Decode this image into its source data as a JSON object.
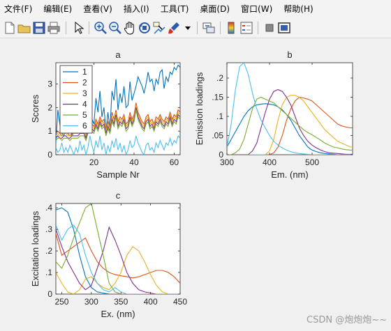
{
  "menus": [
    "文件(F)",
    "编辑(E)",
    "查看(V)",
    "插入(I)",
    "工具(T)",
    "桌面(D)",
    "窗口(W)",
    "帮助(H)"
  ],
  "toolbar_icons": [
    "new-file-icon",
    "open-folder-icon",
    "save-icon",
    "print-icon",
    "pointer-icon",
    "zoom-in-icon",
    "zoom-out-icon",
    "pan-hand-icon",
    "rotate-3d-icon",
    "data-cursor-icon",
    "brush-icon",
    "link-icon",
    "colorbar-icon",
    "legend-icon",
    "hide-plot-tools-icon",
    "show-plot-tools-icon"
  ],
  "watermark": "CSDN @炮炮炮~~",
  "colors": [
    "#0072BD",
    "#D95319",
    "#EDB120",
    "#7E2F8E",
    "#77AC30",
    "#4DBEEE"
  ],
  "chart_data": [
    {
      "type": "line",
      "title": "a",
      "xlabel": "Sample Nr",
      "ylabel": "Scores",
      "xlim": [
        1,
        63
      ],
      "ylim": [
        0,
        3.9
      ],
      "xticks": [
        20,
        40,
        60
      ],
      "yticks": [
        0,
        1,
        2,
        3
      ],
      "legend": [
        "1",
        "2",
        "3",
        "4",
        "5",
        "6"
      ],
      "legend_position": "top-left",
      "series": [
        {
          "name": "1",
          "values": [
            0.5,
            1.9,
            1.3,
            0.9,
            0.8,
            1.1,
            0.9,
            1.2,
            0.8,
            1.1,
            1.3,
            1.0,
            1.7,
            1.2,
            1.3,
            0.7,
            1.6,
            2.1,
            1.5,
            1.3,
            2.4,
            1.8,
            2.7,
            1.6,
            2.0,
            1.0,
            1.8,
            1.1,
            2.7,
            2.3,
            3.2,
            1.9,
            2.6,
            2.2,
            2.9,
            2.0,
            2.1,
            3.1,
            2.3,
            2.6,
            2.9,
            3.3,
            3.1,
            2.9,
            2.6,
            3.0,
            3.5,
            3.1,
            3.2,
            2.7,
            3.2,
            3.0,
            3.5,
            3.6,
            2.8,
            3.3,
            3.1,
            3.5,
            3.4,
            3.7,
            3.6,
            3.8,
            3.7
          ]
        },
        {
          "name": "2",
          "values": [
            0.9,
            1.0,
            0.9,
            0.8,
            0.9,
            1.0,
            0.9,
            0.8,
            0.9,
            1.0,
            1.0,
            0.9,
            1.1,
            1.0,
            1.1,
            0.9,
            1.2,
            1.4,
            1.3,
            1.2,
            1.5,
            1.3,
            1.6,
            1.4,
            1.5,
            1.1,
            1.4,
            1.2,
            1.8,
            1.5,
            1.9,
            1.4,
            1.6,
            1.5,
            1.7,
            1.3,
            1.4,
            1.8,
            1.5,
            1.7,
            2.2,
            1.8,
            1.6,
            1.4,
            1.3,
            1.6,
            1.7,
            1.4,
            1.5,
            1.3,
            1.6,
            1.5,
            1.7,
            1.5,
            1.4,
            1.6,
            1.5,
            1.8,
            1.5,
            1.7,
            1.6,
            1.9,
            1.8
          ]
        },
        {
          "name": "3",
          "values": [
            0.8,
            0.9,
            0.8,
            0.8,
            0.9,
            0.9,
            0.8,
            0.8,
            0.8,
            0.9,
            0.9,
            0.9,
            1.0,
            0.9,
            1.0,
            0.8,
            1.1,
            1.3,
            1.2,
            1.1,
            1.4,
            1.2,
            1.5,
            1.3,
            1.4,
            1.0,
            1.3,
            1.1,
            1.6,
            1.4,
            1.8,
            1.3,
            1.5,
            1.4,
            1.6,
            1.2,
            1.3,
            1.7,
            1.4,
            1.6,
            2.1,
            1.7,
            1.5,
            1.3,
            1.2,
            1.5,
            1.6,
            1.3,
            1.4,
            1.2,
            1.5,
            1.4,
            1.6,
            1.4,
            1.3,
            1.5,
            1.4,
            1.7,
            1.4,
            1.6,
            1.5,
            1.8,
            1.7
          ]
        },
        {
          "name": "4",
          "values": [
            0.7,
            0.8,
            0.7,
            0.7,
            0.8,
            0.8,
            0.7,
            0.7,
            0.8,
            0.8,
            0.8,
            0.8,
            0.9,
            0.9,
            0.9,
            0.7,
            1.0,
            1.2,
            1.1,
            1.0,
            1.3,
            1.1,
            1.4,
            1.2,
            1.3,
            0.9,
            1.2,
            1.0,
            1.5,
            1.3,
            1.7,
            1.2,
            1.4,
            1.3,
            1.5,
            1.1,
            1.2,
            1.6,
            1.3,
            1.5,
            2.0,
            1.6,
            1.4,
            1.2,
            1.1,
            1.4,
            1.5,
            1.2,
            1.3,
            1.1,
            1.4,
            1.3,
            1.5,
            1.3,
            1.2,
            1.4,
            1.3,
            1.6,
            1.3,
            1.5,
            1.4,
            1.7,
            1.6
          ]
        },
        {
          "name": "5",
          "values": [
            0.6,
            0.7,
            0.7,
            0.6,
            0.7,
            0.7,
            0.7,
            0.6,
            0.7,
            0.7,
            0.7,
            0.7,
            0.8,
            0.8,
            0.8,
            0.6,
            0.9,
            1.1,
            1.0,
            0.9,
            1.2,
            1.0,
            1.3,
            1.1,
            1.2,
            0.8,
            1.1,
            0.9,
            1.4,
            1.2,
            1.6,
            1.1,
            1.3,
            1.2,
            1.4,
            1.0,
            1.1,
            1.5,
            1.2,
            1.4,
            1.9,
            1.5,
            1.3,
            1.1,
            1.0,
            1.3,
            1.4,
            1.1,
            1.2,
            1.0,
            1.3,
            1.2,
            1.4,
            1.2,
            1.1,
            1.3,
            1.2,
            1.5,
            1.2,
            1.4,
            1.3,
            1.6,
            1.5
          ]
        },
        {
          "name": "6",
          "values": [
            0.3,
            0.1,
            0.2,
            0.5,
            0.1,
            0.3,
            0.1,
            0.4,
            0.2,
            0.0,
            0.3,
            0.1,
            0.6,
            0.2,
            0.4,
            0.0,
            0.3,
            0.8,
            0.4,
            0.1,
            0.6,
            0.3,
            0.8,
            0.2,
            0.5,
            0.0,
            0.4,
            0.1,
            0.6,
            0.3,
            0.7,
            0.2,
            0.5,
            0.1,
            0.4,
            0.0,
            0.2,
            0.6,
            0.3,
            0.4,
            0.8,
            0.5,
            0.3,
            0.1,
            0.0,
            0.4,
            0.5,
            0.2,
            0.3,
            0.1,
            0.5,
            0.3,
            0.6,
            0.4,
            0.2,
            0.5,
            0.4,
            0.7,
            0.4,
            0.6,
            0.5,
            0.8,
            0.7
          ]
        }
      ]
    },
    {
      "type": "line",
      "title": "b",
      "xlabel": "Em. (nm)",
      "ylabel": "Emission loadings",
      "xlim": [
        300,
        595
      ],
      "ylim": [
        0,
        0.24
      ],
      "xticks": [
        300,
        400,
        500
      ],
      "yticks": [
        0,
        0.05,
        0.1,
        0.15,
        0.2
      ],
      "x": [
        300,
        310,
        320,
        330,
        340,
        350,
        360,
        370,
        380,
        390,
        400,
        410,
        420,
        430,
        440,
        450,
        460,
        470,
        480,
        490,
        500,
        510,
        520,
        530,
        540,
        550,
        560,
        570,
        580,
        590,
        595
      ],
      "series": [
        {
          "name": "1",
          "values": [
            0.02,
            0.04,
            0.06,
            0.08,
            0.1,
            0.115,
            0.125,
            0.13,
            0.132,
            0.133,
            0.132,
            0.13,
            0.125,
            0.117,
            0.105,
            0.09,
            0.07,
            0.05,
            0.035,
            0.02,
            0.012,
            0.008,
            0.005,
            0.003,
            0.002,
            0.001,
            0,
            0,
            0,
            0,
            0
          ]
        },
        {
          "name": "2",
          "values": [
            0,
            0,
            0,
            0,
            0,
            0,
            0,
            0,
            0,
            0,
            0,
            0.005,
            0.02,
            0.05,
            0.09,
            0.12,
            0.14,
            0.15,
            0.148,
            0.145,
            0.14,
            0.13,
            0.12,
            0.11,
            0.1,
            0.09,
            0.08,
            0.075,
            0.072,
            0.07,
            0.07
          ]
        },
        {
          "name": "3",
          "values": [
            0,
            0,
            0,
            0,
            0,
            0,
            0,
            0,
            0,
            0,
            0.01,
            0.04,
            0.09,
            0.13,
            0.15,
            0.155,
            0.155,
            0.15,
            0.14,
            0.125,
            0.11,
            0.095,
            0.08,
            0.065,
            0.055,
            0.045,
            0.035,
            0.03,
            0.025,
            0.02,
            0.02
          ]
        },
        {
          "name": "4",
          "values": [
            0,
            0,
            0,
            0,
            0,
            0,
            0.01,
            0.03,
            0.07,
            0.11,
            0.145,
            0.165,
            0.17,
            0.165,
            0.15,
            0.13,
            0.1,
            0.07,
            0.05,
            0.035,
            0.025,
            0.018,
            0.012,
            0.008,
            0.005,
            0.004,
            0.003,
            0.002,
            0.001,
            0.001,
            0.001
          ]
        },
        {
          "name": "5",
          "values": [
            0,
            0,
            0.005,
            0.015,
            0.04,
            0.08,
            0.12,
            0.145,
            0.15,
            0.145,
            0.14,
            0.135,
            0.125,
            0.115,
            0.105,
            0.095,
            0.085,
            0.075,
            0.065,
            0.058,
            0.052,
            0.045,
            0.038,
            0.03,
            0.025,
            0.02,
            0.018,
            0.015,
            0.013,
            0.012,
            0.012
          ]
        },
        {
          "name": "6",
          "values": [
            0.02,
            0.08,
            0.17,
            0.23,
            0.24,
            0.21,
            0.16,
            0.12,
            0.09,
            0.07,
            0.05,
            0.035,
            0.025,
            0.018,
            0.012,
            0.008,
            0.005,
            0.003,
            0.002,
            0.001,
            0,
            0,
            0,
            0,
            0,
            0,
            0,
            0,
            0,
            0,
            0
          ]
        }
      ]
    },
    {
      "type": "line",
      "title": "c",
      "xlabel": "Ex. (nm)",
      "ylabel": "Excitation loadings",
      "xlim": [
        240,
        450
      ],
      "ylim": [
        0,
        0.42
      ],
      "xticks": [
        250,
        300,
        350,
        400,
        450
      ],
      "yticks": [
        0,
        0.1,
        0.2,
        0.3,
        0.4
      ],
      "x": [
        240,
        250,
        260,
        270,
        280,
        290,
        300,
        310,
        320,
        330,
        340,
        350,
        360,
        370,
        380,
        390,
        400,
        410,
        420,
        430,
        440,
        450
      ],
      "series": [
        {
          "name": "1",
          "values": [
            0.39,
            0.4,
            0.38,
            0.3,
            0.18,
            0.08,
            0.03,
            0.01,
            0.005,
            0,
            0,
            0,
            0,
            0,
            0,
            0,
            0,
            0,
            0,
            0,
            0,
            0
          ]
        },
        {
          "name": "2",
          "values": [
            0.28,
            0.18,
            0.2,
            0.22,
            0.24,
            0.26,
            0.2,
            0.15,
            0.12,
            0.1,
            0.09,
            0.085,
            0.08,
            0.075,
            0.08,
            0.09,
            0.1,
            0.11,
            0.11,
            0.1,
            0.08,
            0.05
          ]
        },
        {
          "name": "3",
          "values": [
            0.1,
            0.05,
            0.01,
            0,
            0.02,
            0.07,
            0.08,
            0.05,
            0.03,
            0.02,
            0.05,
            0.1,
            0.18,
            0.22,
            0.2,
            0.15,
            0.09,
            0.04,
            0.01,
            0,
            0,
            0
          ]
        },
        {
          "name": "4",
          "values": [
            0.3,
            0.22,
            0.15,
            0.1,
            0.05,
            0.02,
            0.04,
            0.12,
            0.2,
            0.31,
            0.25,
            0.18,
            0.1,
            0.05,
            0.02,
            0.01,
            0.005,
            0,
            0,
            0,
            0,
            0
          ]
        },
        {
          "name": "5",
          "values": [
            0.15,
            0.12,
            0.18,
            0.26,
            0.33,
            0.4,
            0.42,
            0.3,
            0.18,
            0.05,
            0.01,
            0,
            0,
            0,
            0,
            0,
            0,
            0,
            0,
            0,
            0,
            0
          ]
        },
        {
          "name": "6",
          "values": [
            0.32,
            0.25,
            0.3,
            0.32,
            0.28,
            0.18,
            0.1,
            0.05,
            0.02,
            0.01,
            0.03,
            0.01,
            0,
            0,
            0,
            0,
            0,
            0,
            0,
            0,
            0,
            0
          ]
        }
      ]
    }
  ]
}
